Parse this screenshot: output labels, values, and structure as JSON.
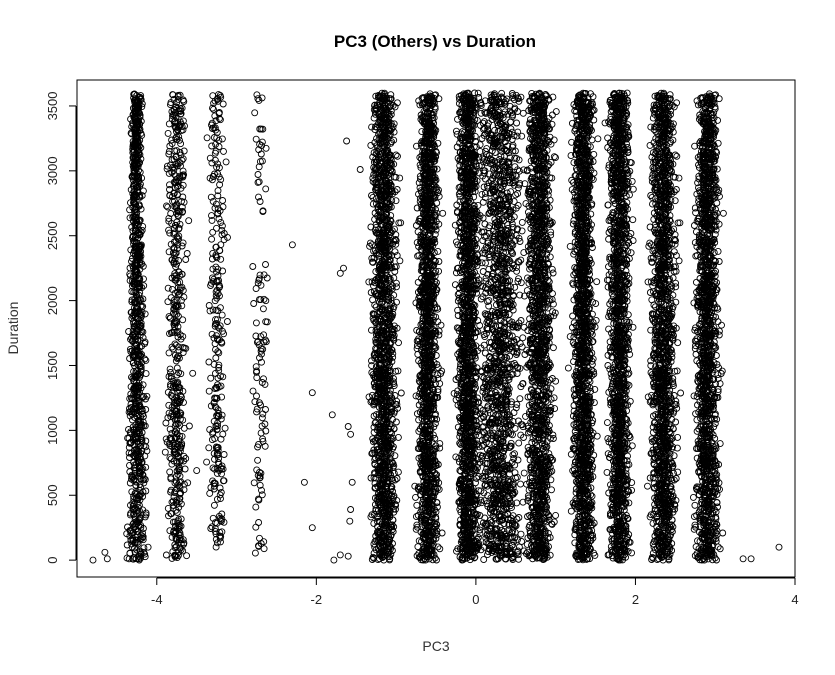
{
  "chart_data": {
    "type": "scatter",
    "title": "PC3 (Others) vs Duration",
    "xlabel": "PC3",
    "ylabel": "Duration",
    "xlim": [
      -5.0,
      4.0
    ],
    "ylim": [
      -130,
      3700
    ],
    "x_ticks": [
      -4,
      -2,
      0,
      2,
      4
    ],
    "y_ticks": [
      0,
      500,
      1000,
      1500,
      2000,
      2500,
      3000,
      3500
    ],
    "x_tick_labels": [
      "-4",
      "-2",
      "0",
      "2",
      "4"
    ],
    "y_tick_labels": [
      "0",
      "500",
      "1000",
      "1500",
      "2000",
      "2500",
      "3000",
      "3500"
    ],
    "marker": "open-circle",
    "color": "#000000",
    "grid": false,
    "clusters": [
      {
        "x_center": -4.25,
        "x_spread": 0.08,
        "y_range": [
          0,
          3600
        ],
        "density": "very-high",
        "top_narrower": true
      },
      {
        "x_center": -3.75,
        "x_spread": 0.09,
        "y_range": [
          0,
          3590
        ],
        "density": "high"
      },
      {
        "x_center": -3.25,
        "x_spread": 0.08,
        "y_range": [
          100,
          3590
        ],
        "density": "medium"
      },
      {
        "x_center": -2.7,
        "x_spread": 0.07,
        "y_range": [
          20,
          3590
        ],
        "density": "low"
      },
      {
        "x_center": -1.15,
        "x_spread": 0.12,
        "y_range": [
          0,
          3600
        ],
        "density": "saturated"
      },
      {
        "x_center": -0.6,
        "x_spread": 0.1,
        "y_range": [
          0,
          3600
        ],
        "density": "saturated"
      },
      {
        "x_center": -0.1,
        "x_spread": 0.1,
        "y_range": [
          0,
          3600
        ],
        "density": "saturated"
      },
      {
        "x_center": 0.3,
        "x_spread": 0.22,
        "y_range": [
          0,
          3600
        ],
        "density": "saturated"
      },
      {
        "x_center": 0.8,
        "x_spread": 0.12,
        "y_range": [
          0,
          3600
        ],
        "density": "saturated"
      },
      {
        "x_center": 1.35,
        "x_spread": 0.1,
        "y_range": [
          0,
          3600
        ],
        "density": "saturated"
      },
      {
        "x_center": 1.8,
        "x_spread": 0.1,
        "y_range": [
          0,
          3600
        ],
        "density": "saturated"
      },
      {
        "x_center": 2.35,
        "x_spread": 0.12,
        "y_range": [
          0,
          3600
        ],
        "density": "saturated"
      },
      {
        "x_center": 2.9,
        "x_spread": 0.11,
        "y_range": [
          0,
          3600
        ],
        "density": "saturated"
      }
    ],
    "outliers": [
      {
        "x": -4.8,
        "y": 0
      },
      {
        "x": -4.65,
        "y": 60
      },
      {
        "x": -4.62,
        "y": 10
      },
      {
        "x": -2.3,
        "y": 2430
      },
      {
        "x": -2.05,
        "y": 1290
      },
      {
        "x": -2.15,
        "y": 600
      },
      {
        "x": -2.05,
        "y": 250
      },
      {
        "x": -1.8,
        "y": 1120
      },
      {
        "x": -1.78,
        "y": 0
      },
      {
        "x": -1.7,
        "y": 2210
      },
      {
        "x": -1.66,
        "y": 2250
      },
      {
        "x": -1.62,
        "y": 3230
      },
      {
        "x": -1.6,
        "y": 1030
      },
      {
        "x": -1.57,
        "y": 970
      },
      {
        "x": -1.55,
        "y": 600
      },
      {
        "x": -1.57,
        "y": 390
      },
      {
        "x": -1.58,
        "y": 300
      },
      {
        "x": -1.6,
        "y": 30
      },
      {
        "x": -1.7,
        "y": 40
      },
      {
        "x": -1.45,
        "y": 3010
      },
      {
        "x": -3.55,
        "y": 1440
      },
      {
        "x": -3.5,
        "y": 690
      },
      {
        "x": 3.35,
        "y": 10
      },
      {
        "x": 3.45,
        "y": 10
      },
      {
        "x": 3.8,
        "y": 100
      }
    ]
  }
}
